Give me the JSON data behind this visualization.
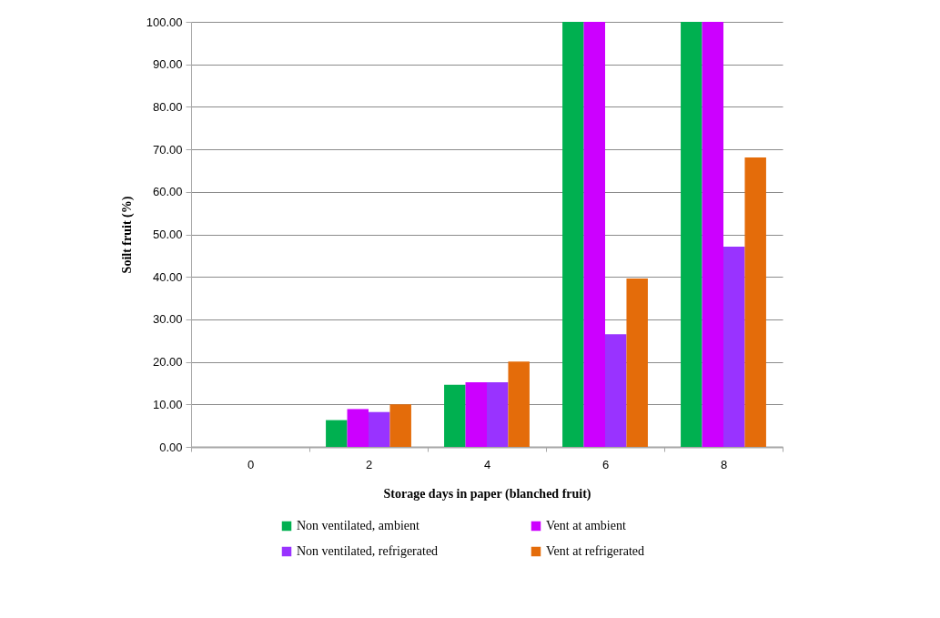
{
  "chart_data": {
    "type": "bar",
    "xlabel": "Storage days in paper (blanched fruit)",
    "ylabel": "Soilt fruit (%)",
    "categories": [
      "0",
      "2",
      "4",
      "6",
      "8"
    ],
    "series": [
      {
        "name": "Non ventilated, ambient",
        "color": "#00b050",
        "values": [
          0,
          6.3,
          14.6,
          100,
          100
        ]
      },
      {
        "name": "Vent at ambient",
        "color": "#cc00ff",
        "values": [
          0,
          8.9,
          15.2,
          100,
          100
        ]
      },
      {
        "name": "Non ventilated, refrigerated",
        "color": "#9933ff",
        "values": [
          0,
          8.2,
          15.2,
          26.5,
          47.1
        ]
      },
      {
        "name": "Vent at refrigerated",
        "color": "#e46c0a",
        "values": [
          0,
          10.0,
          20.1,
          39.6,
          68.1
        ]
      }
    ],
    "ylim": [
      0,
      100
    ],
    "yticks": [
      {
        "value": 0,
        "label": "0.00"
      },
      {
        "value": 10,
        "label": "10.00"
      },
      {
        "value": 20,
        "label": "20.00"
      },
      {
        "value": 30,
        "label": "30.00"
      },
      {
        "value": 40,
        "label": "40.00"
      },
      {
        "value": 50,
        "label": "50.00"
      },
      {
        "value": 60,
        "label": "60.00"
      },
      {
        "value": 70,
        "label": "70.00"
      },
      {
        "value": 80,
        "label": "80.00"
      },
      {
        "value": 90,
        "label": "90.00"
      },
      {
        "value": 100,
        "label": "100.00"
      }
    ],
    "grid": "y",
    "legend": "bottom"
  }
}
